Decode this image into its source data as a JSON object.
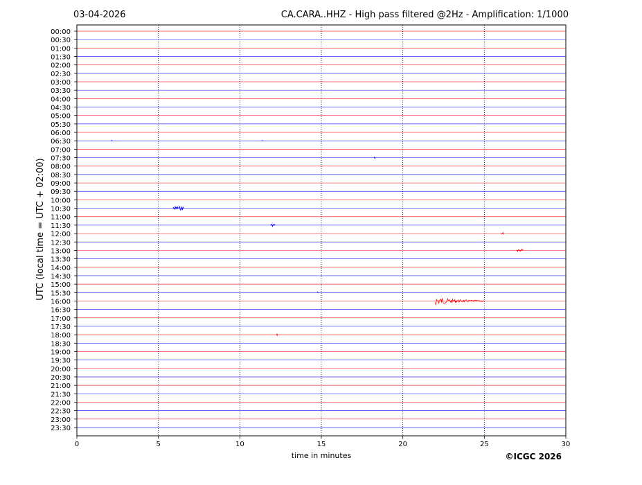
{
  "chart_data": {
    "type": "helicorder",
    "title": "03-04-2026",
    "subtitle": "CA.CARA..HHZ - High pass filtered @2Hz - Amplification: 1/1000",
    "y_label": "UTC (local time = UTC + 02:00)",
    "x_label": "time in minutes",
    "footer": "©ICGC 2026",
    "categories": [
      "00:00",
      "00:30",
      "01:00",
      "01:30",
      "02:00",
      "02:30",
      "03:00",
      "03:30",
      "04:00",
      "04:30",
      "05:00",
      "05:30",
      "06:00",
      "06:30",
      "07:00",
      "07:30",
      "08:00",
      "08:30",
      "09:00",
      "09:30",
      "10:00",
      "10:30",
      "11:00",
      "11:30",
      "12:00",
      "12:30",
      "13:00",
      "13:30",
      "14:00",
      "14:30",
      "15:00",
      "15:30",
      "16:00",
      "16:30",
      "17:00",
      "17:30",
      "18:00",
      "18:30",
      "19:00",
      "19:30",
      "20:00",
      "20:30",
      "21:00",
      "21:30",
      "22:00",
      "22:30",
      "23:00",
      "23:30"
    ],
    "colors": [
      "#ff0000",
      "#0000ff"
    ],
    "xlim": [
      0,
      30
    ],
    "xticks": [
      0,
      5,
      10,
      15,
      20,
      25,
      30
    ],
    "grid": true,
    "events": [
      {
        "row": "06:30",
        "start": 2.1,
        "end": 2.2
      },
      {
        "row": "06:30",
        "start": 11.35,
        "end": 11.45
      },
      {
        "row": "07:30",
        "start": 18.25,
        "end": 18.35
      },
      {
        "row": "10:30",
        "start": 5.9,
        "end": 6.6
      },
      {
        "row": "11:30",
        "start": 11.9,
        "end": 12.2
      },
      {
        "row": "12:00",
        "start": 26.05,
        "end": 26.2
      },
      {
        "row": "13:00",
        "start": 27.0,
        "end": 27.4
      },
      {
        "row": "15:30",
        "start": 14.75,
        "end": 14.85
      },
      {
        "row": "16:00",
        "start": 22.0,
        "end": 25.0
      },
      {
        "row": "18:00",
        "start": 12.25,
        "end": 12.35
      }
    ]
  }
}
